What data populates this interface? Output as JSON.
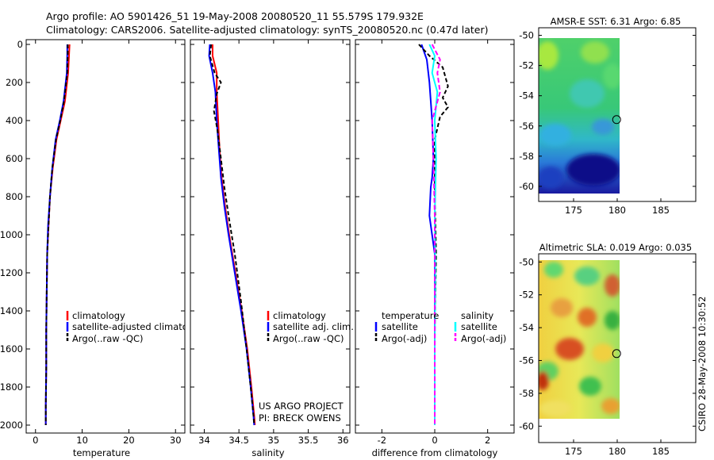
{
  "header": {
    "line1": "Argo profile: AO 5901426_51 19-May-2008 20080520_11 55.579S 179.932E",
    "line2": "Climatology: CARS2006. Satellite-adjusted climatology: synTS_20080520.nc (0.47d later)"
  },
  "footer_stamp": "CSIRO 28-May-2008 10:30:52",
  "colors": {
    "climatology": "#ff0000",
    "satellite": "#0000ff",
    "argo": "#000000",
    "sat_salinity": "#00ffff",
    "argo_salinity": "#ff00ff"
  },
  "chart_data": [
    {
      "type": "line",
      "xlabel": "temperature",
      "ylabel": "",
      "xlim": [
        -2,
        32
      ],
      "ylim": [
        0,
        2050
      ],
      "xticks": [
        "0",
        "10",
        "20",
        "30"
      ],
      "yticks": [
        "0",
        "200",
        "400",
        "600",
        "800",
        "1000",
        "1200",
        "1400",
        "1600",
        "1800",
        "2000"
      ],
      "legend": [
        "climatology",
        "satellite-adjusted climatology",
        "Argo(..raw -QC)"
      ],
      "series": [
        {
          "name": "climatology",
          "x": [
            7.3,
            7.2,
            7.0,
            6.3,
            5.4,
            4.5,
            3.7,
            3.1,
            2.8,
            2.5,
            2.4,
            2.3,
            2.3,
            2.2,
            2.2
          ],
          "y": [
            0,
            50,
            150,
            300,
            400,
            500,
            650,
            800,
            950,
            1100,
            1300,
            1500,
            1700,
            1900,
            2000
          ]
        },
        {
          "name": "satellite-adjusted climatology",
          "x": [
            6.8,
            6.8,
            6.7,
            6.0,
            5.2,
            4.3,
            3.6,
            3.1,
            2.7,
            2.5,
            2.4,
            2.3,
            2.3,
            2.2,
            2.2
          ],
          "y": [
            0,
            50,
            150,
            300,
            400,
            500,
            650,
            800,
            950,
            1100,
            1300,
            1500,
            1700,
            1900,
            2000
          ]
        },
        {
          "name": "Argo(..raw -QC)",
          "x": [
            6.9,
            6.9,
            6.8,
            6.1,
            5.3,
            4.4,
            3.6,
            3.1,
            2.8,
            2.5,
            2.4,
            2.3,
            2.3,
            2.2,
            2.2
          ],
          "y": [
            0,
            50,
            150,
            300,
            400,
            500,
            650,
            800,
            950,
            1100,
            1300,
            1500,
            1700,
            1900,
            2000
          ]
        }
      ]
    },
    {
      "type": "line",
      "xlabel": "salinity",
      "xlim": [
        33.8,
        36.1
      ],
      "ylim": [
        0,
        2050
      ],
      "xticks": [
        "34",
        "34.5",
        "35",
        "35.5",
        "36"
      ],
      "legend": [
        "climatology",
        "satellite adj. clim.",
        "Argo(..raw -QC)"
      ],
      "annotations": [
        "US ARGO PROJECT",
        "PI: BRECK OWENS"
      ],
      "series": [
        {
          "name": "climatology",
          "x": [
            34.12,
            34.12,
            34.18,
            34.18,
            34.2,
            34.22,
            34.25,
            34.3,
            34.36,
            34.45,
            34.54,
            34.62,
            34.68,
            34.72,
            34.73
          ],
          "y": [
            0,
            60,
            150,
            250,
            400,
            550,
            700,
            850,
            1000,
            1200,
            1400,
            1600,
            1800,
            1950,
            2000
          ]
        },
        {
          "name": "satellite adj. clim.",
          "x": [
            34.08,
            34.07,
            34.12,
            34.16,
            34.18,
            34.21,
            34.24,
            34.29,
            34.35,
            34.44,
            34.53,
            34.61,
            34.67,
            34.71,
            34.72
          ],
          "y": [
            0,
            60,
            150,
            250,
            400,
            550,
            700,
            850,
            1000,
            1200,
            1400,
            1600,
            1800,
            1950,
            2000
          ]
        },
        {
          "name": "Argo(..raw -QC)",
          "x": [
            34.1,
            34.08,
            34.15,
            34.24,
            34.18,
            34.14,
            34.19,
            34.24,
            34.29,
            34.35,
            34.44,
            34.53,
            34.61,
            34.67,
            34.71,
            34.72
          ],
          "y": [
            0,
            60,
            150,
            200,
            260,
            350,
            450,
            600,
            750,
            900,
            1100,
            1350,
            1600,
            1800,
            1950,
            2000
          ]
        }
      ]
    },
    {
      "type": "line",
      "xlabel": "difference from climatology",
      "xlim": [
        -3,
        3
      ],
      "ylim": [
        0,
        2050
      ],
      "xticks": [
        "-2",
        "0",
        "2"
      ],
      "legend_titles": [
        "temperature",
        "salinity"
      ],
      "legend": [
        "satellite",
        "Argo(-adj)",
        "satellite",
        "Argo(-adj)"
      ],
      "series": [
        {
          "name": "satellite",
          "x": [
            -0.5,
            -0.3,
            -0.2,
            -0.1,
            -0.05,
            -0.1,
            -0.15,
            -0.2,
            0.0,
            0.0,
            0.0,
            0.0
          ],
          "y": [
            0,
            80,
            200,
            400,
            600,
            700,
            750,
            900,
            1100,
            1400,
            1700,
            2000
          ]
        },
        {
          "name": "Argo(-adj)",
          "x": [
            -0.6,
            -0.2,
            0.3,
            0.5,
            0.3,
            0.5,
            0.2,
            0.0,
            0.0,
            0.05,
            0.0,
            0.0
          ],
          "y": [
            0,
            60,
            120,
            220,
            280,
            330,
            380,
            500,
            800,
            1100,
            1500,
            2000
          ]
        },
        {
          "name": "satellite",
          "x": [
            -0.2,
            0.0,
            -0.1,
            0.1,
            0.0,
            0.05,
            0.0,
            0.02,
            0.0,
            0.0
          ],
          "y": [
            0,
            60,
            150,
            250,
            400,
            600,
            900,
            1200,
            1600,
            2000
          ]
        },
        {
          "name": "Argo(-adj)",
          "x": [
            -0.1,
            0.2,
            0.1,
            0.2,
            -0.1,
            -0.05,
            0.0,
            0.0,
            0.0
          ],
          "y": [
            0,
            80,
            150,
            250,
            400,
            600,
            900,
            1300,
            2000
          ]
        }
      ]
    },
    {
      "type": "heatmap",
      "title": "AMSR-E SST: 6.31 Argo: 6.85",
      "xlim": [
        171,
        189
      ],
      "ylim": [
        -61,
        -49.5
      ],
      "xticks": [
        "175",
        "180",
        "185"
      ],
      "yticks": [
        "-50",
        "-52",
        "-54",
        "-56",
        "-58",
        "-60"
      ],
      "marker": {
        "lon": 179.932,
        "lat": -55.579
      }
    },
    {
      "type": "heatmap",
      "title": "Altimetric SLA: 0.019 Argo: 0.035",
      "xlim": [
        171,
        189
      ],
      "ylim": [
        -61,
        -49.5
      ],
      "xticks": [
        "175",
        "180",
        "185"
      ],
      "yticks": [
        "-50",
        "-52",
        "-54",
        "-56",
        "-58",
        "-60"
      ],
      "marker": {
        "lon": 179.932,
        "lat": -55.579
      }
    }
  ]
}
